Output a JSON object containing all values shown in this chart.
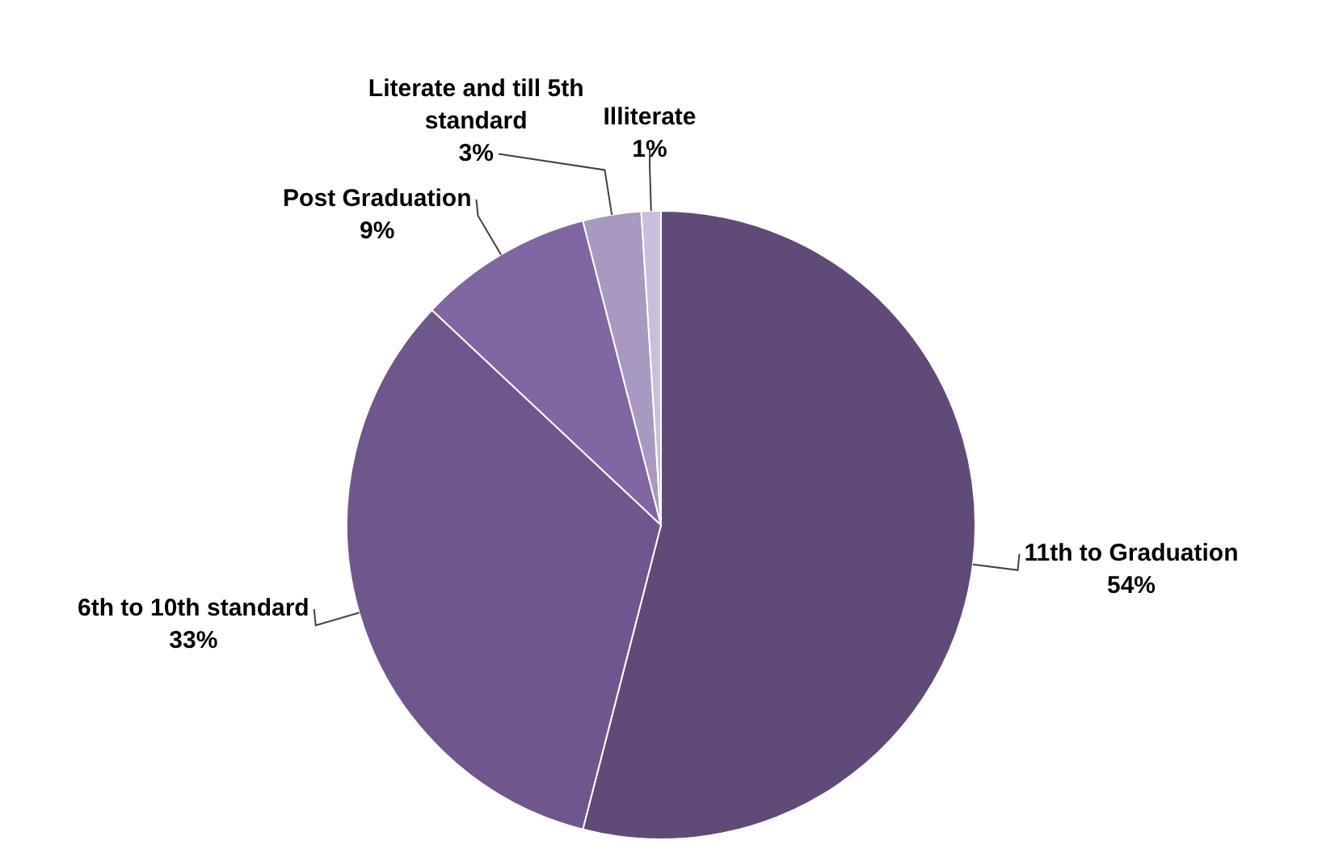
{
  "chart_data": {
    "type": "pie",
    "categories": [
      "11th to Graduation",
      "6th to 10th standard",
      "Post Graduation",
      "Literate and till 5th standard",
      "Illiterate"
    ],
    "values": [
      54,
      33,
      9,
      3,
      1
    ],
    "value_labels": [
      "54%",
      "33%",
      "9%",
      "3%",
      "1%"
    ],
    "colors": [
      "#5f4a78",
      "#6f568c",
      "#8066a3",
      "#a899c0",
      "#c9bedb"
    ],
    "legend": false
  }
}
